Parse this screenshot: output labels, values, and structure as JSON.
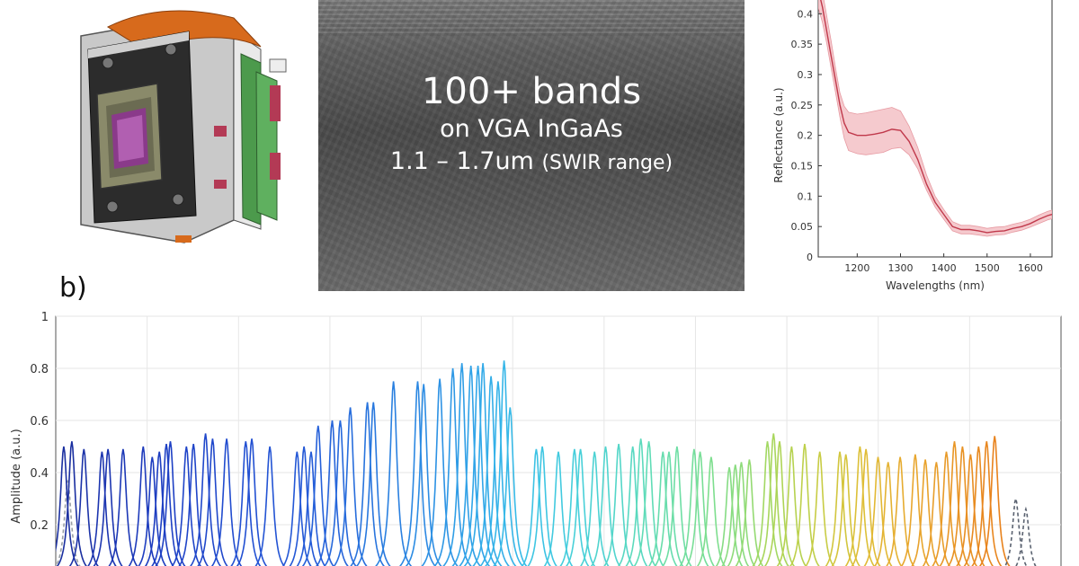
{
  "sensor_panel": {
    "line1": "100+ bands",
    "line2": "on VGA InGaAs",
    "line3_main": "1.1 – 1.7um",
    "line3_sub": "(SWIR range)"
  },
  "panel_label": "b)",
  "chart_data": [
    {
      "type": "line",
      "title": "",
      "xlabel": "Wavelengths (nm)",
      "ylabel": "Reflectance (a.u.)",
      "xlim": [
        1110,
        1650
      ],
      "ylim": [
        0,
        0.43
      ],
      "xticks": [
        1200,
        1300,
        1400,
        1500,
        1600
      ],
      "yticks": [
        0,
        0.05,
        0.1,
        0.15,
        0.2,
        0.25,
        0.3,
        0.35,
        0.4
      ],
      "grid": false,
      "series": [
        {
          "color": "#c0394b",
          "band_color": "#f2b8bd",
          "x": [
            1110,
            1120,
            1130,
            1140,
            1150,
            1160,
            1170,
            1180,
            1200,
            1220,
            1240,
            1260,
            1280,
            1300,
            1320,
            1340,
            1360,
            1380,
            1400,
            1420,
            1440,
            1460,
            1480,
            1500,
            1520,
            1540,
            1560,
            1580,
            1600,
            1620,
            1640,
            1650
          ],
          "y": [
            0.44,
            0.41,
            0.37,
            0.33,
            0.29,
            0.25,
            0.22,
            0.205,
            0.2,
            0.2,
            0.202,
            0.205,
            0.21,
            0.208,
            0.19,
            0.16,
            0.12,
            0.09,
            0.07,
            0.05,
            0.045,
            0.045,
            0.043,
            0.04,
            0.042,
            0.043,
            0.047,
            0.05,
            0.055,
            0.062,
            0.068,
            0.07
          ],
          "lower": [
            0.41,
            0.385,
            0.35,
            0.31,
            0.27,
            0.23,
            0.195,
            0.175,
            0.17,
            0.168,
            0.17,
            0.172,
            0.178,
            0.18,
            0.168,
            0.145,
            0.11,
            0.082,
            0.062,
            0.043,
            0.038,
            0.038,
            0.036,
            0.034,
            0.036,
            0.037,
            0.041,
            0.044,
            0.049,
            0.055,
            0.061,
            0.063
          ],
          "upper": [
            0.46,
            0.435,
            0.395,
            0.355,
            0.31,
            0.27,
            0.248,
            0.238,
            0.235,
            0.237,
            0.24,
            0.243,
            0.246,
            0.24,
            0.215,
            0.18,
            0.135,
            0.1,
            0.078,
            0.058,
            0.052,
            0.052,
            0.05,
            0.047,
            0.049,
            0.05,
            0.054,
            0.057,
            0.062,
            0.069,
            0.075,
            0.077
          ]
        }
      ]
    },
    {
      "type": "line",
      "title": "",
      "xlabel": "",
      "ylabel": "Amplitude (a.u.)",
      "ylim": [
        0,
        1
      ],
      "yticks": [
        0.2,
        0.4,
        0.6,
        0.8,
        1
      ],
      "xrange": [
        0,
        1
      ],
      "grid": true,
      "peak_width": 0.0042,
      "series": [
        {
          "x0": 0.012,
          "amp": 0.37,
          "color": "#9aa0a6",
          "dash": true
        },
        {
          "x0": 0.008,
          "amp": 0.5,
          "color": "#1a2fa0"
        },
        {
          "x0": 0.016,
          "amp": 0.52,
          "color": "#1a2fa0"
        },
        {
          "x0": 0.028,
          "amp": 0.49,
          "color": "#1b32a8"
        },
        {
          "x0": 0.046,
          "amp": 0.48,
          "color": "#1c35b0"
        },
        {
          "x0": 0.052,
          "amp": 0.49,
          "color": "#1c35b0"
        },
        {
          "x0": 0.067,
          "amp": 0.49,
          "color": "#1c38b6"
        },
        {
          "x0": 0.087,
          "amp": 0.5,
          "color": "#1d3abb"
        },
        {
          "x0": 0.096,
          "amp": 0.46,
          "color": "#1d3dc0"
        },
        {
          "x0": 0.103,
          "amp": 0.48,
          "color": "#1d3dc0"
        },
        {
          "x0": 0.11,
          "amp": 0.51,
          "color": "#1e40c4"
        },
        {
          "x0": 0.114,
          "amp": 0.52,
          "color": "#1e40c4"
        },
        {
          "x0": 0.13,
          "amp": 0.5,
          "color": "#1f44c8"
        },
        {
          "x0": 0.137,
          "amp": 0.51,
          "color": "#1f44c8"
        },
        {
          "x0": 0.149,
          "amp": 0.55,
          "color": "#2048cb"
        },
        {
          "x0": 0.156,
          "amp": 0.53,
          "color": "#2048cb"
        },
        {
          "x0": 0.17,
          "amp": 0.53,
          "color": "#214ccf"
        },
        {
          "x0": 0.189,
          "amp": 0.52,
          "color": "#2250d2"
        },
        {
          "x0": 0.195,
          "amp": 0.53,
          "color": "#2250d2"
        },
        {
          "x0": 0.213,
          "amp": 0.5,
          "color": "#2354d4"
        },
        {
          "x0": 0.24,
          "amp": 0.48,
          "color": "#2458d6"
        },
        {
          "x0": 0.247,
          "amp": 0.5,
          "color": "#2458d6"
        },
        {
          "x0": 0.254,
          "amp": 0.48,
          "color": "#255cd8"
        },
        {
          "x0": 0.261,
          "amp": 0.58,
          "color": "#2560d9"
        },
        {
          "x0": 0.275,
          "amp": 0.6,
          "color": "#2664da"
        },
        {
          "x0": 0.283,
          "amp": 0.6,
          "color": "#2668db"
        },
        {
          "x0": 0.293,
          "amp": 0.65,
          "color": "#276ddc"
        },
        {
          "x0": 0.31,
          "amp": 0.67,
          "color": "#2874dd"
        },
        {
          "x0": 0.316,
          "amp": 0.67,
          "color": "#2878de"
        },
        {
          "x0": 0.336,
          "amp": 0.75,
          "color": "#2a80e0"
        },
        {
          "x0": 0.36,
          "amp": 0.75,
          "color": "#2c88e2"
        },
        {
          "x0": 0.366,
          "amp": 0.74,
          "color": "#2c8ce3"
        },
        {
          "x0": 0.382,
          "amp": 0.76,
          "color": "#2d92e4"
        },
        {
          "x0": 0.395,
          "amp": 0.8,
          "color": "#2e98e5"
        },
        {
          "x0": 0.404,
          "amp": 0.82,
          "color": "#2f9ee6"
        },
        {
          "x0": 0.413,
          "amp": 0.81,
          "color": "#30a2e7"
        },
        {
          "x0": 0.42,
          "amp": 0.81,
          "color": "#31a6e8"
        },
        {
          "x0": 0.425,
          "amp": 0.82,
          "color": "#32aae8"
        },
        {
          "x0": 0.433,
          "amp": 0.77,
          "color": "#33aee8"
        },
        {
          "x0": 0.44,
          "amp": 0.75,
          "color": "#34b2e8"
        },
        {
          "x0": 0.446,
          "amp": 0.83,
          "color": "#36b6e8"
        },
        {
          "x0": 0.452,
          "amp": 0.65,
          "color": "#38bae7"
        },
        {
          "x0": 0.478,
          "amp": 0.49,
          "color": "#3cc2e4"
        },
        {
          "x0": 0.484,
          "amp": 0.5,
          "color": "#3ec6e2"
        },
        {
          "x0": 0.5,
          "amp": 0.48,
          "color": "#42cadf"
        },
        {
          "x0": 0.516,
          "amp": 0.49,
          "color": "#46cedb"
        },
        {
          "x0": 0.522,
          "amp": 0.49,
          "color": "#48d0d8"
        },
        {
          "x0": 0.536,
          "amp": 0.48,
          "color": "#4cd2d3"
        },
        {
          "x0": 0.547,
          "amp": 0.5,
          "color": "#50d4ce"
        },
        {
          "x0": 0.56,
          "amp": 0.51,
          "color": "#54d6c8"
        },
        {
          "x0": 0.574,
          "amp": 0.5,
          "color": "#58d8c2"
        },
        {
          "x0": 0.582,
          "amp": 0.53,
          "color": "#5cdabc"
        },
        {
          "x0": 0.59,
          "amp": 0.52,
          "color": "#60dcb6"
        },
        {
          "x0": 0.604,
          "amp": 0.48,
          "color": "#66dcae"
        },
        {
          "x0": 0.61,
          "amp": 0.48,
          "color": "#6addaa"
        },
        {
          "x0": 0.618,
          "amp": 0.5,
          "color": "#6edea4"
        },
        {
          "x0": 0.635,
          "amp": 0.49,
          "color": "#74de9c"
        },
        {
          "x0": 0.641,
          "amp": 0.48,
          "color": "#78de96"
        },
        {
          "x0": 0.652,
          "amp": 0.46,
          "color": "#7ede8e"
        },
        {
          "x0": 0.67,
          "amp": 0.42,
          "color": "#86dc84"
        },
        {
          "x0": 0.676,
          "amp": 0.43,
          "color": "#8adc80"
        },
        {
          "x0": 0.682,
          "amp": 0.44,
          "color": "#8edb7a"
        },
        {
          "x0": 0.69,
          "amp": 0.45,
          "color": "#94da72"
        },
        {
          "x0": 0.708,
          "amp": 0.52,
          "color": "#a2d862"
        },
        {
          "x0": 0.714,
          "amp": 0.55,
          "color": "#a8d65c"
        },
        {
          "x0": 0.72,
          "amp": 0.52,
          "color": "#aed456"
        },
        {
          "x0": 0.732,
          "amp": 0.5,
          "color": "#b6d250"
        },
        {
          "x0": 0.745,
          "amp": 0.51,
          "color": "#bed04a"
        },
        {
          "x0": 0.76,
          "amp": 0.48,
          "color": "#c8cc44"
        },
        {
          "x0": 0.78,
          "amp": 0.48,
          "color": "#d2c63e"
        },
        {
          "x0": 0.786,
          "amp": 0.47,
          "color": "#d6c43c"
        },
        {
          "x0": 0.8,
          "amp": 0.5,
          "color": "#dcc038"
        },
        {
          "x0": 0.806,
          "amp": 0.49,
          "color": "#e0bc36"
        },
        {
          "x0": 0.818,
          "amp": 0.46,
          "color": "#e2b834"
        },
        {
          "x0": 0.828,
          "amp": 0.44,
          "color": "#e4b232"
        },
        {
          "x0": 0.84,
          "amp": 0.46,
          "color": "#e6ac30"
        },
        {
          "x0": 0.855,
          "amp": 0.47,
          "color": "#e8a62e"
        },
        {
          "x0": 0.865,
          "amp": 0.45,
          "color": "#e8a22c"
        },
        {
          "x0": 0.876,
          "amp": 0.44,
          "color": "#e89e2a"
        },
        {
          "x0": 0.886,
          "amp": 0.48,
          "color": "#e89a28"
        },
        {
          "x0": 0.894,
          "amp": 0.52,
          "color": "#e89626"
        },
        {
          "x0": 0.902,
          "amp": 0.5,
          "color": "#e89224"
        },
        {
          "x0": 0.91,
          "amp": 0.47,
          "color": "#e88e22"
        },
        {
          "x0": 0.918,
          "amp": 0.5,
          "color": "#e88a20"
        },
        {
          "x0": 0.926,
          "amp": 0.52,
          "color": "#e8861e"
        },
        {
          "x0": 0.934,
          "amp": 0.54,
          "color": "#e8821c"
        },
        {
          "x0": 0.955,
          "amp": 0.3,
          "color": "#5a6270",
          "dash": true
        },
        {
          "x0": 0.965,
          "amp": 0.26,
          "color": "#5a6270",
          "dash": true
        }
      ]
    }
  ]
}
